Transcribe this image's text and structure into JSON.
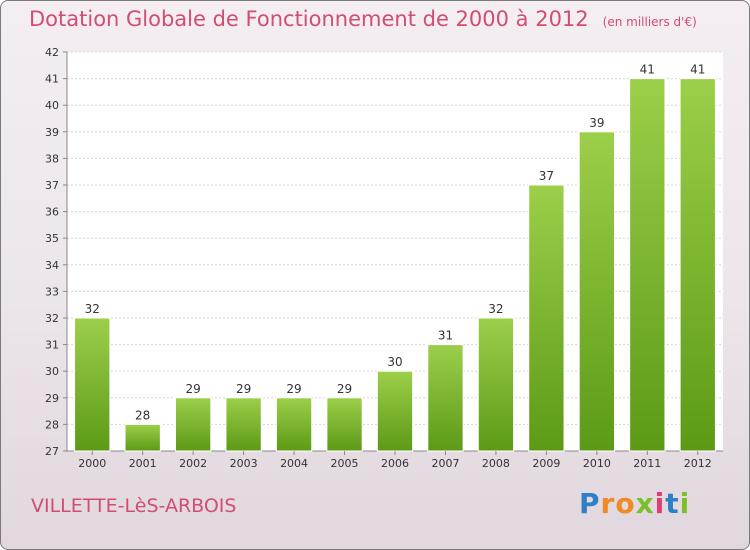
{
  "chart_data": {
    "type": "bar",
    "title": "Dotation Globale de Fonctionnement de 2000 à 2012",
    "subtitle": "(en milliers d'€)",
    "categories": [
      "2000",
      "2001",
      "2002",
      "2003",
      "2004",
      "2005",
      "2006",
      "2007",
      "2008",
      "2009",
      "2010",
      "2011",
      "2012"
    ],
    "values": [
      32,
      28,
      29,
      29,
      29,
      29,
      30,
      31,
      32,
      37,
      39,
      41,
      41
    ],
    "ylim": [
      27,
      42
    ],
    "yticks": [
      27,
      28,
      29,
      30,
      31,
      32,
      33,
      34,
      35,
      36,
      37,
      38,
      39,
      40,
      41,
      42
    ],
    "grid": true,
    "bar_color_top": "#9ccf4a",
    "bar_color_bottom": "#5c9a16",
    "title_color": "#d14d72"
  },
  "footer": {
    "commune": "VILLETTE-LèS-ARBOIS",
    "logo_letters": [
      "P",
      "r",
      "o",
      "x",
      "i",
      "t",
      "i"
    ],
    "logo_colors": [
      "#2f7fc6",
      "#f08a24",
      "#f08a24",
      "#7bbf2a",
      "#e23d6e",
      "#2f7fc6",
      "#7bbf2a"
    ]
  }
}
